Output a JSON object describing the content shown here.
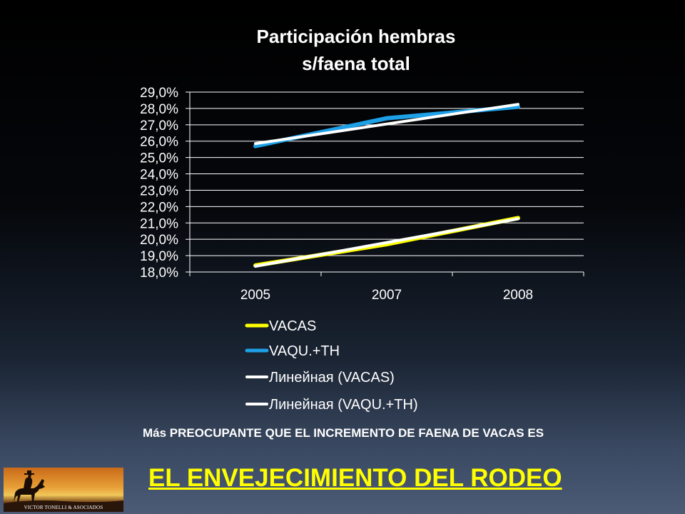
{
  "chart_data": {
    "type": "line",
    "title_lines": [
      "Participación hembras",
      "s/faena total"
    ],
    "categories": [
      "2005",
      "2007",
      "2008"
    ],
    "ylim": [
      18.0,
      29.0
    ],
    "yticks": [
      "18,0%",
      "19,0%",
      "20,0%",
      "21,0%",
      "22,0%",
      "23,0%",
      "24,0%",
      "25,0%",
      "26,0%",
      "27,0%",
      "28,0%",
      "29,0%"
    ],
    "grid": true,
    "legend_position": "bottom",
    "series": [
      {
        "name": "VACAS",
        "values": [
          18.4,
          19.7,
          21.3
        ],
        "color": "#ffff00"
      },
      {
        "name": "VAQU.+TH",
        "values": [
          25.7,
          27.4,
          28.1
        ],
        "color": "#1ea0e6"
      }
    ],
    "trendlines": [
      {
        "name": "Линейная (VACAS)",
        "values": [
          18.35,
          19.8,
          21.25
        ],
        "color": "#ffffff"
      },
      {
        "name": "Линейная (VAQU.+TH)",
        "values": [
          25.85,
          27.05,
          28.25
        ],
        "color": "#ffffff"
      }
    ]
  },
  "note_text": "Más PREOCUPANTE QUE EL INCREMENTO DE FAENA DE VACAS ES",
  "headline_text": "EL ENVEJECIMIENTO DEL RODEO",
  "logo": {
    "text": "VICTOR TONELLI & ASOCIADOS",
    "icon": "horse-rider-silhouette-icon"
  },
  "colors": {
    "background": "#000000",
    "headline": "#ffff00"
  }
}
